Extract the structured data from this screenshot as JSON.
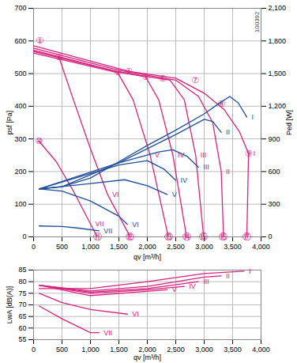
{
  "chart_data": [
    {
      "type": "line",
      "x_label": "qv [m³/h]",
      "y_label": "psf [Pa]",
      "y2_label": "Ped [W]",
      "note": "100392",
      "xlim": [
        0,
        4000
      ],
      "xticks": [
        0,
        500,
        {
          "value": 1000,
          "label": "1,000"
        },
        {
          "value": 1500,
          "label": "1,500"
        },
        {
          "value": 2000,
          "label": "2,000"
        },
        {
          "value": 2500,
          "label": "2,500"
        },
        {
          "value": 3000,
          "label": "3,000"
        },
        {
          "value": 3500,
          "label": "3,500"
        },
        {
          "value": 4000,
          "label": "4,000"
        }
      ],
      "ylim": [
        0,
        700
      ],
      "yticks": [
        0,
        100,
        200,
        300,
        400,
        500,
        600,
        700
      ],
      "y2lim": [
        0,
        2100
      ],
      "y2ticks": [
        0,
        300,
        600,
        900,
        {
          "value": 1200,
          "label": "1,200"
        },
        {
          "value": 1500,
          "label": "1,500"
        },
        {
          "value": 1800,
          "label": "1,800"
        },
        {
          "value": 2100,
          "label": "2,100"
        }
      ],
      "grid": true,
      "series": [
        {
          "name": "I",
          "color": "#d6237f",
          "x": [
            0,
            1670,
            2500,
            3000,
            3350,
            3620,
            3780,
            3750
          ],
          "values": [
            585,
            507,
            486,
            440,
            390,
            322,
            255,
            0
          ]
        },
        {
          "name": "II",
          "color": "#d6237f",
          "x": [
            0,
            1500,
            2500,
            2900,
            3150,
            3300,
            3340
          ],
          "values": [
            578,
            510,
            480,
            430,
            350,
            200,
            0
          ]
        },
        {
          "name": "III",
          "color": "#d6237f",
          "x": [
            0,
            1500,
            2400,
            2650,
            2850,
            2990
          ],
          "values": [
            572,
            505,
            480,
            420,
            250,
            0
          ]
        },
        {
          "name": "IV",
          "color": "#d6237f",
          "x": [
            0,
            1500,
            1970,
            2200,
            2450,
            2690
          ],
          "values": [
            568,
            505,
            490,
            420,
            250,
            0
          ]
        },
        {
          "name": "V",
          "color": "#d6237f",
          "x": [
            0,
            1480,
            1750,
            2050,
            2370
          ],
          "values": [
            563,
            503,
            420,
            250,
            0
          ]
        },
        {
          "name": "VI",
          "color": "#d6237f",
          "x": [
            445,
            700,
            1000,
            1300,
            1700
          ],
          "values": [
            551,
            420,
            270,
            130,
            0
          ]
        },
        {
          "name": "VII",
          "color": "#d6237f",
          "x": [
            95,
            400,
            700,
            1000,
            1120
          ],
          "values": [
            293,
            230,
            140,
            40,
            0
          ]
        },
        {
          "name": "I",
          "color": "#1f4e99",
          "axis": "y2",
          "x": [
            100,
            500,
            1000,
            1500,
            2000,
            2500,
            3000,
            3300,
            3450,
            3600,
            3750
          ],
          "values": [
            440,
            460,
            540,
            690,
            840,
            980,
            1130,
            1240,
            1290,
            1230,
            1100
          ]
        },
        {
          "name": "II",
          "color": "#1f4e99",
          "axis": "y2",
          "x": [
            100,
            500,
            1500,
            2500,
            3000,
            3150,
            3300
          ],
          "values": [
            440,
            460,
            680,
            940,
            1080,
            1060,
            960
          ]
        },
        {
          "name": "III",
          "color": "#1f4e99",
          "axis": "y2",
          "x": [
            100,
            1500,
            2200,
            2450,
            2700,
            2900
          ],
          "values": [
            440,
            680,
            780,
            800,
            740,
            640
          ]
        },
        {
          "name": "IV",
          "color": "#1f4e99",
          "axis": "y2",
          "x": [
            100,
            1500,
            2000,
            2300,
            2500
          ],
          "values": [
            440,
            660,
            700,
            620,
            520
          ]
        },
        {
          "name": "V",
          "color": "#1f4e99",
          "axis": "y2",
          "x": [
            100,
            1000,
            1600,
            2000,
            2350
          ],
          "values": [
            440,
            490,
            525,
            470,
            390
          ]
        },
        {
          "name": "VI",
          "color": "#1f4e99",
          "axis": "y2",
          "x": [
            100,
            500,
            1000,
            1500,
            1650
          ],
          "values": [
            440,
            420,
            330,
            190,
            115
          ]
        },
        {
          "name": "VII",
          "color": "#1f4e99",
          "axis": "y2",
          "x": [
            100,
            500,
            800,
            1150
          ],
          "values": [
            100,
            95,
            80,
            55
          ]
        }
      ],
      "annotations": [
        {
          "x": 108,
          "y": 600,
          "text": "①"
        },
        {
          "x": 445,
          "y": 551,
          "text": "②"
        },
        {
          "x": 1480,
          "y": 503,
          "text": "③"
        },
        {
          "x": 1670,
          "y": 507,
          "text": "④"
        },
        {
          "x": 1970,
          "y": 490,
          "text": "⑤"
        },
        {
          "x": 2270,
          "y": 484,
          "text": "⑥"
        },
        {
          "x": 2840,
          "y": 479,
          "text": "⑦"
        },
        {
          "x": 3300,
          "y": 407,
          "text": "⑧"
        },
        {
          "x": 3780,
          "y": 255,
          "text": "⑨"
        },
        {
          "x": 95,
          "y": 293,
          "text": "⑩"
        },
        {
          "x": 1120,
          "y": 0,
          "text": "⑪"
        },
        {
          "x": 1700,
          "y": 0,
          "text": "⑫"
        },
        {
          "x": 2370,
          "y": 0,
          "text": "⑬"
        },
        {
          "x": 2690,
          "y": 0,
          "text": "⑭"
        },
        {
          "x": 2990,
          "y": 0,
          "text": "⑮"
        },
        {
          "x": 3340,
          "y": 0,
          "text": "⑯"
        },
        {
          "x": 3750,
          "y": 0,
          "text": "⑰"
        }
      ]
    },
    {
      "type": "line",
      "x_label": "qv [m³/h]",
      "y_label": "LwA [dB(A)]",
      "xlim": [
        0,
        4000
      ],
      "xticks": [
        0,
        500,
        {
          "value": 1000,
          "label": "1,000"
        },
        {
          "value": 1500,
          "label": "1,500"
        },
        {
          "value": 2000,
          "label": "2,000"
        },
        {
          "value": 2500,
          "label": "2,500"
        },
        {
          "value": 3000,
          "label": "3,000"
        },
        {
          "value": 3500,
          "label": "3,500"
        },
        {
          "value": 4000,
          "label": "4,000"
        }
      ],
      "ylim": [
        55,
        85
      ],
      "yticks": [
        55,
        60,
        65,
        70,
        75,
        80,
        85
      ],
      "grid": true,
      "series": [
        {
          "name": "I",
          "color": "#d6237f",
          "x": [
            100,
            1000,
            2000,
            3000,
            3700
          ],
          "values": [
            77,
            77,
            80,
            83.5,
            84.5
          ]
        },
        {
          "name": "II",
          "color": "#d6237f",
          "x": [
            100,
            1000,
            2000,
            3000,
            3300
          ],
          "values": [
            78.5,
            76,
            78,
            82,
            82.5
          ]
        },
        {
          "name": "III",
          "color": "#d6237f",
          "x": [
            100,
            1000,
            2000,
            2900
          ],
          "values": [
            78.5,
            75.5,
            77,
            80
          ]
        },
        {
          "name": "IV",
          "color": "#d6237f",
          "x": [
            100,
            1000,
            2000,
            2650
          ],
          "values": [
            78.5,
            75,
            76.5,
            78
          ]
        },
        {
          "name": "V",
          "color": "#d6237f",
          "x": [
            100,
            1000,
            1800,
            2350
          ],
          "values": [
            78.5,
            74,
            75.5,
            76.5
          ]
        },
        {
          "name": "VI",
          "color": "#d6237f",
          "x": [
            100,
            500,
            1000,
            1650
          ],
          "values": [
            75,
            71,
            68,
            66
          ]
        },
        {
          "name": "VII",
          "color": "#d6237f",
          "x": [
            100,
            500,
            1000,
            1150
          ],
          "values": [
            69.5,
            64,
            58,
            58
          ]
        }
      ]
    }
  ]
}
